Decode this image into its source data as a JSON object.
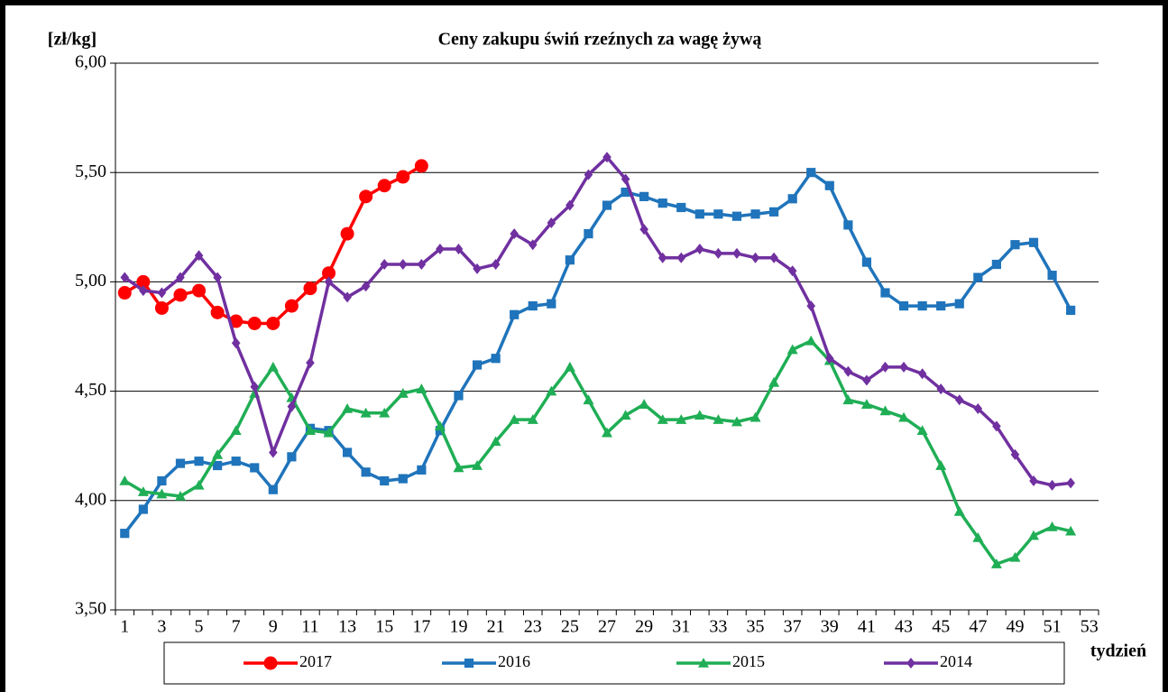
{
  "chart_data": {
    "type": "line",
    "title": "Ceny zakupu świń rzeźnych  za wagę żywą",
    "y_label": "[zł/kg]",
    "x_label": "tydzień",
    "categories": [
      1,
      null,
      3,
      null,
      5,
      null,
      7,
      null,
      9,
      null,
      11,
      null,
      13,
      null,
      15,
      null,
      17,
      null,
      19,
      null,
      21,
      null,
      23,
      null,
      25,
      null,
      27,
      null,
      29,
      null,
      31,
      null,
      33,
      null,
      35,
      null,
      37,
      null,
      39,
      null,
      41,
      null,
      43,
      null,
      45,
      null,
      47,
      null,
      49,
      null,
      51,
      null,
      53
    ],
    "ylim": [
      3.5,
      6.0
    ],
    "yticks": [
      {
        "value": 3.5,
        "label": "3,50"
      },
      {
        "value": 4.0,
        "label": "4,00"
      },
      {
        "value": 4.5,
        "label": "4,50"
      },
      {
        "value": 5.0,
        "label": "5,00"
      },
      {
        "value": 5.5,
        "label": "5,50"
      },
      {
        "value": 6.0,
        "label": "6,00"
      }
    ],
    "grid": true,
    "legend": "bottom",
    "series": [
      {
        "name": "2017",
        "color": "#ff0000",
        "marker": "circle",
        "values": [
          4.95,
          5.0,
          4.88,
          4.94,
          4.96,
          4.86,
          4.82,
          4.81,
          4.81,
          4.89,
          4.97,
          5.04,
          5.22,
          5.39,
          5.44,
          5.48,
          5.53,
          null,
          null,
          null,
          null,
          null,
          null,
          null,
          null,
          null,
          null,
          null,
          null,
          null,
          null,
          null,
          null,
          null,
          null,
          null,
          null,
          null,
          null,
          null,
          null,
          null,
          null,
          null,
          null,
          null,
          null,
          null,
          null,
          null,
          null,
          null,
          null
        ]
      },
      {
        "name": "2016",
        "color": "#1f74bb",
        "marker": "square",
        "values": [
          3.85,
          3.96,
          4.09,
          4.17,
          4.18,
          4.16,
          4.18,
          4.15,
          4.05,
          4.2,
          4.33,
          4.32,
          4.22,
          4.13,
          4.09,
          4.1,
          4.14,
          4.32,
          4.48,
          4.62,
          4.65,
          4.85,
          4.89,
          4.9,
          5.1,
          5.22,
          5.35,
          5.41,
          5.39,
          5.36,
          5.34,
          5.31,
          5.31,
          5.3,
          5.31,
          5.32,
          5.38,
          5.5,
          5.44,
          5.26,
          5.09,
          4.95,
          4.89,
          4.89,
          4.89,
          4.9,
          5.02,
          5.08,
          5.17,
          5.18,
          5.03,
          4.87,
          null
        ]
      },
      {
        "name": "2015",
        "color": "#1fae55",
        "marker": "triangle",
        "values": [
          4.09,
          4.04,
          4.03,
          4.02,
          4.07,
          4.21,
          4.32,
          4.49,
          4.61,
          4.47,
          4.32,
          4.31,
          4.42,
          4.4,
          4.4,
          4.49,
          4.51,
          4.34,
          4.15,
          4.16,
          4.27,
          4.37,
          4.37,
          4.5,
          4.61,
          4.46,
          4.31,
          4.39,
          4.44,
          4.37,
          4.37,
          4.39,
          4.37,
          4.36,
          4.38,
          4.54,
          4.69,
          4.73,
          4.64,
          4.46,
          4.44,
          4.41,
          4.38,
          4.32,
          4.16,
          3.95,
          3.83,
          3.71,
          3.74,
          3.84,
          3.88,
          3.86,
          null
        ]
      },
      {
        "name": "2014",
        "color": "#7030a0",
        "marker": "diamond",
        "values": [
          5.02,
          4.96,
          4.95,
          5.02,
          5.12,
          5.02,
          4.72,
          4.52,
          4.22,
          4.43,
          4.63,
          5.0,
          4.93,
          4.98,
          5.08,
          5.08,
          5.08,
          5.15,
          5.15,
          5.06,
          5.08,
          5.22,
          5.17,
          5.27,
          5.35,
          5.49,
          5.57,
          5.47,
          5.24,
          5.11,
          5.11,
          5.15,
          5.13,
          5.13,
          5.11,
          5.11,
          5.05,
          4.89,
          4.65,
          4.59,
          4.55,
          4.61,
          4.61,
          4.58,
          4.51,
          4.46,
          4.42,
          4.34,
          4.21,
          4.09,
          4.07,
          4.08,
          null
        ]
      }
    ]
  }
}
